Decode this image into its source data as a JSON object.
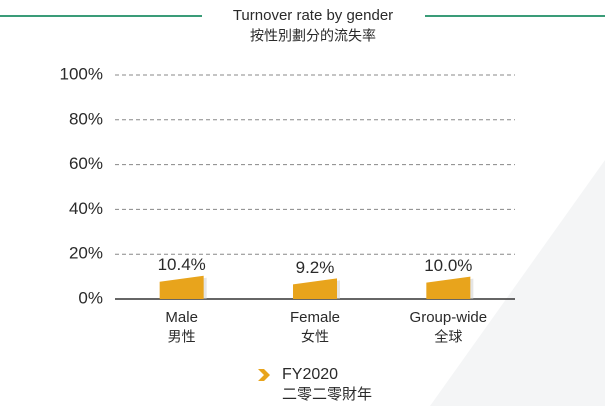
{
  "chart_data": {
    "type": "bar",
    "title": "Turnover rate by gender",
    "subtitle": "按性別劃分的流失率",
    "categories": [
      [
        "Male",
        "男性"
      ],
      [
        "Female",
        "女性"
      ],
      [
        "Group-wide",
        "全球"
      ]
    ],
    "series": [
      {
        "name": [
          "FY2020",
          "二零二零財年"
        ],
        "color": "#e8a41c",
        "values": [
          10.4,
          9.2,
          10.0
        ],
        "value_labels": [
          "10.4%",
          "9.2%",
          "10.0%"
        ]
      }
    ],
    "ylim": [
      0,
      100
    ],
    "yticks": [
      {
        "value": 0,
        "label": "0%"
      },
      {
        "value": 20,
        "label": "20%"
      },
      {
        "value": 40,
        "label": "40%"
      },
      {
        "value": 60,
        "label": "60%"
      },
      {
        "value": 80,
        "label": "80%"
      },
      {
        "value": 100,
        "label": "100%"
      }
    ],
    "grid": true,
    "legend": "bottom"
  }
}
